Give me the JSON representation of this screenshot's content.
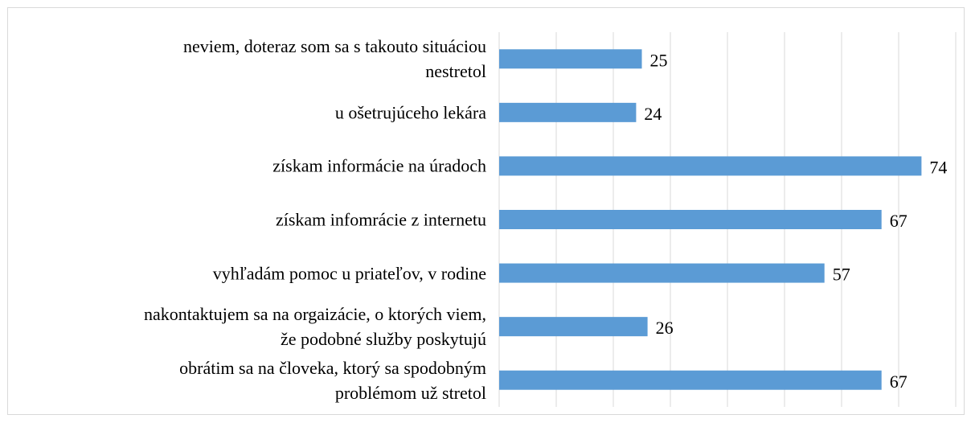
{
  "chart_data": {
    "type": "barh",
    "categories": [
      "neviem, doteraz som sa s takouto situáciou\nnestretol",
      "u ošetrujúceho lekára",
      "získam informácie na úradoch",
      "získam infomrácie z internetu",
      "vyhľadám pomoc u priateľov, v rodine",
      "nakontaktujem sa na orgaizácie, o ktorých viem,\nže podobné služby poskytujú",
      "obrátim sa na človeka, ktorý sa  spodobným\nproblémom už stretol"
    ],
    "values": [
      25,
      24,
      74,
      67,
      57,
      26,
      67
    ],
    "color": "#5b9bd5",
    "xlim": [
      0,
      80
    ],
    "xticks": [
      0,
      10,
      20,
      30,
      40,
      50,
      60,
      70,
      80
    ],
    "grid": true
  }
}
